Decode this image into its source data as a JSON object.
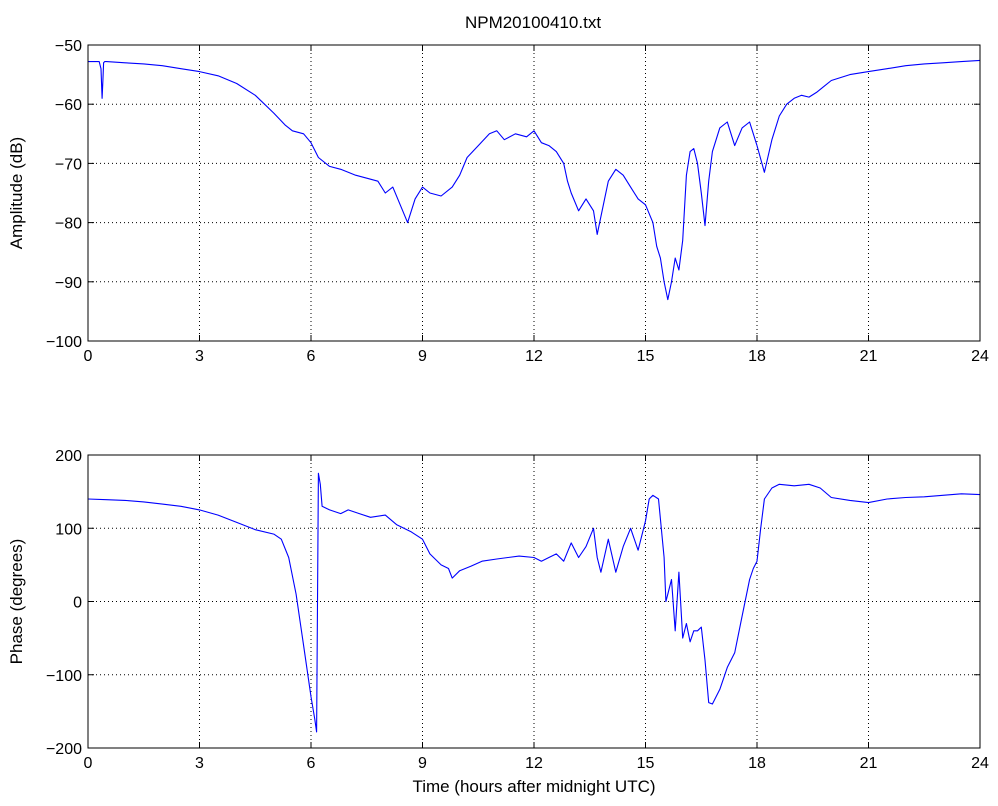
{
  "figure": {
    "title": "NPM20100410.txt"
  },
  "chart_data": [
    {
      "type": "line",
      "title": "NPM20100410.txt",
      "xlabel": "",
      "ylabel": "Amplitude (dB)",
      "xlim": [
        0,
        24
      ],
      "ylim": [
        -100,
        -50
      ],
      "xticks": [
        0,
        3,
        6,
        9,
        12,
        15,
        18,
        21,
        24
      ],
      "yticks": [
        -100,
        -90,
        -80,
        -70,
        -60,
        -50
      ],
      "xtick_labels": [
        "0",
        "3",
        "6",
        "9",
        "12",
        "15",
        "18",
        "21",
        "24"
      ],
      "ytick_labels": [
        "−100",
        "−90",
        "−80",
        "−70",
        "−60",
        "−50"
      ],
      "grid": true,
      "color": "#0000ff",
      "series": [
        {
          "x": [
            0,
            0.3,
            0.35,
            0.38,
            0.4,
            0.42,
            0.45,
            0.5,
            1,
            1.5,
            2,
            2.5,
            3,
            3.5,
            4,
            4.5,
            5,
            5.3,
            5.5,
            5.8,
            6,
            6.2,
            6.5,
            6.8,
            7,
            7.2,
            7.5,
            7.8,
            8,
            8.2,
            8.4,
            8.5,
            8.6,
            8.8,
            9,
            9.2,
            9.5,
            9.8,
            10,
            10.2,
            10.5,
            10.8,
            11,
            11.2,
            11.5,
            11.8,
            12,
            12.2,
            12.4,
            12.6,
            12.8,
            12.9,
            13,
            13.2,
            13.4,
            13.6,
            13.7,
            13.9,
            14,
            14.2,
            14.4,
            14.6,
            14.8,
            15,
            15.2,
            15.3,
            15.4,
            15.5,
            15.6,
            15.7,
            15.8,
            15.9,
            16,
            16.1,
            16.2,
            16.3,
            16.4,
            16.5,
            16.6,
            16.7,
            16.8,
            17,
            17.2,
            17.4,
            17.6,
            17.8,
            18,
            18.2,
            18.4,
            18.6,
            18.8,
            19,
            19.2,
            19.4,
            19.6,
            19.8,
            20,
            20.5,
            21,
            21.5,
            22,
            22.5,
            23,
            23.5,
            24
          ],
          "y": [
            -52.8,
            -52.8,
            -54,
            -59,
            -56,
            -53,
            -52.8,
            -52.8,
            -53,
            -53.2,
            -53.5,
            -54,
            -54.5,
            -55.2,
            -56.5,
            -58.5,
            -61.5,
            -63.5,
            -64.5,
            -65,
            -66.5,
            -69,
            -70.5,
            -71,
            -71.5,
            -72,
            -72.5,
            -73,
            -75,
            -74,
            -77,
            -78.5,
            -80,
            -76,
            -74,
            -75,
            -75.5,
            -74,
            -72,
            -69,
            -67,
            -65,
            -64.5,
            -66,
            -65,
            -65.5,
            -64.5,
            -66.5,
            -67,
            -68,
            -70,
            -73,
            -75,
            -78,
            -76,
            -78,
            -82,
            -76,
            -73,
            -71,
            -72,
            -74,
            -76,
            -77,
            -80,
            -84,
            -86,
            -90,
            -93,
            -90,
            -86,
            -88,
            -83,
            -72,
            -68,
            -67.5,
            -70,
            -75,
            -80.5,
            -73,
            -68,
            -64,
            -63,
            -67,
            -64,
            -63,
            -67,
            -71.5,
            -66,
            -62,
            -60,
            -59,
            -58.5,
            -58.8,
            -58,
            -57,
            -56,
            -55,
            -54.5,
            -54,
            -53.5,
            -53.2,
            -53,
            -52.8,
            -52.6
          ]
        }
      ]
    },
    {
      "type": "line",
      "title": "",
      "xlabel": "Time (hours after midnight UTC)",
      "ylabel": "Phase (degrees)",
      "xlim": [
        0,
        24
      ],
      "ylim": [
        -200,
        200
      ],
      "xticks": [
        0,
        3,
        6,
        9,
        12,
        15,
        18,
        21,
        24
      ],
      "yticks": [
        -200,
        -100,
        0,
        100,
        200
      ],
      "xtick_labels": [
        "0",
        "3",
        "6",
        "9",
        "12",
        "15",
        "18",
        "21",
        "24"
      ],
      "ytick_labels": [
        "−200",
        "−100",
        "0",
        "100",
        "200"
      ],
      "grid": true,
      "color": "#0000ff",
      "series": [
        {
          "x": [
            0,
            0.5,
            1,
            1.5,
            2,
            2.5,
            3,
            3.5,
            4,
            4.5,
            5,
            5.2,
            5.4,
            5.6,
            5.8,
            6,
            6.1,
            6.15,
            6.2,
            6.25,
            6.3,
            6.5,
            6.8,
            7,
            7.3,
            7.6,
            8,
            8.3,
            8.5,
            8.7,
            9,
            9.2,
            9.5,
            9.7,
            9.8,
            10,
            10.3,
            10.6,
            11,
            11.3,
            11.6,
            12,
            12.2,
            12.4,
            12.6,
            12.8,
            13,
            13.2,
            13.4,
            13.6,
            13.7,
            13.8,
            14,
            14.2,
            14.4,
            14.6,
            14.8,
            15,
            15.1,
            15.2,
            15.35,
            15.5,
            15.55,
            15.6,
            15.7,
            15.8,
            15.9,
            16,
            16.1,
            16.2,
            16.3,
            16.4,
            16.5,
            16.6,
            16.7,
            16.8,
            17,
            17.2,
            17.4,
            17.6,
            17.8,
            17.9,
            18,
            18.1,
            18.2,
            18.4,
            18.6,
            19,
            19.4,
            19.7,
            20,
            20.5,
            21,
            21.5,
            22,
            22.5,
            23,
            23.5,
            24
          ],
          "y": [
            140,
            139,
            138,
            136,
            133,
            130,
            125,
            118,
            108,
            98,
            92,
            85,
            60,
            10,
            -60,
            -130,
            -160,
            -178,
            175,
            160,
            130,
            125,
            120,
            125,
            120,
            115,
            118,
            105,
            100,
            95,
            85,
            65,
            50,
            45,
            32,
            42,
            48,
            55,
            58,
            60,
            62,
            60,
            55,
            60,
            65,
            55,
            80,
            60,
            75,
            100,
            60,
            40,
            85,
            40,
            75,
            100,
            70,
            110,
            140,
            145,
            140,
            60,
            0,
            10,
            30,
            -40,
            40,
            -50,
            -30,
            -55,
            -40,
            -40,
            -35,
            -80,
            -138,
            -140,
            -120,
            -90,
            -70,
            -20,
            30,
            45,
            55,
            100,
            140,
            155,
            160,
            158,
            160,
            155,
            142,
            138,
            135,
            140,
            142,
            143,
            145,
            147,
            146
          ]
        }
      ]
    }
  ]
}
